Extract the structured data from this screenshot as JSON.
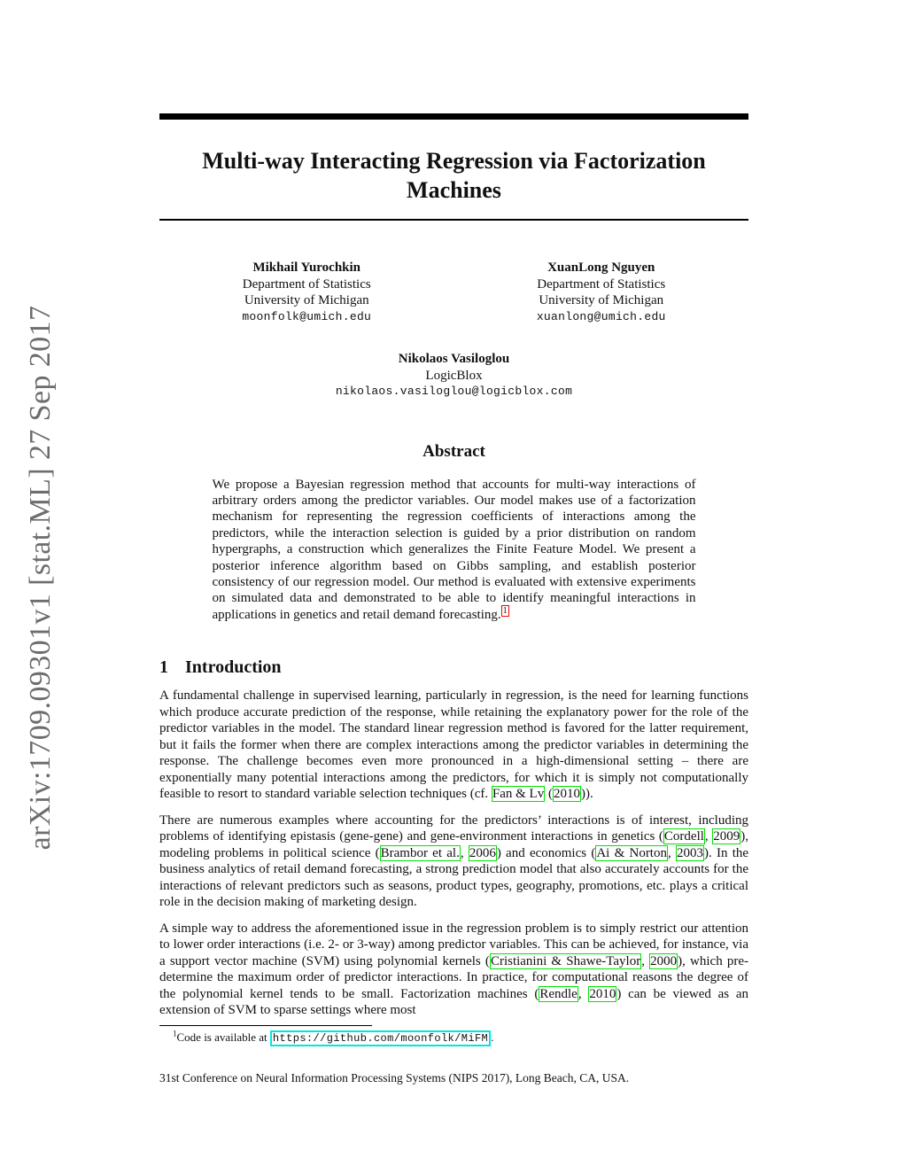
{
  "banner": {
    "text": "arXiv:1709.09301v1  [stat.ML]  27 Sep 2017"
  },
  "title": "Multi-way Interacting Regression via Factorization Machines",
  "authors": [
    {
      "name": "Mikhail Yurochkin",
      "affiliation1": "Department of Statistics",
      "affiliation2": "University of Michigan",
      "email": "moonfolk@umich.edu"
    },
    {
      "name": "XuanLong Nguyen",
      "affiliation1": "Department of Statistics",
      "affiliation2": "University of Michigan",
      "email": "xuanlong@umich.edu"
    },
    {
      "name": "Nikolaos Vasiloglou",
      "affiliation1": "LogicBlox",
      "email": "nikolaos.vasiloglou@logicblox.com"
    }
  ],
  "abstract": {
    "heading": "Abstract",
    "segments": [
      {
        "text": "We propose a Bayesian regression method that accounts for multi-way interactions of arbitrary orders among the predictor variables. Our model makes use of a factorization mechanism for representing the regression coefficients of interactions among the predictors, while the interaction selection is guided by a prior distribution on random hypergraphs, a construction which generalizes the Finite Feature Model. We present a posterior inference algorithm based on Gibbs sampling, and establish posterior consistency of our regression model. Our method is evaluated with extensive experiments on simulated data and demonstrated to be able to identify meaningful interactions in applications in genetics and retail demand forecasting."
      },
      {
        "text": "1",
        "style": "footnote-ref"
      }
    ]
  },
  "introduction": {
    "number": "1",
    "title": "Introduction",
    "paragraphs": [
      {
        "segments": [
          {
            "text": "A fundamental challenge in supervised learning, particularly in regression, is the need for learning functions which produce accurate prediction of the response, while retaining the explanatory power for the role of the predictor variables in the model. The standard linear regression method is favored for the latter requirement, but it fails the former when there are complex interactions among the predictor variables in determining the response. The challenge becomes even more pronounced in a high-dimensional setting – there are exponentially many potential interactions among the predictors, for which it is simply not computationally feasible to resort to standard variable selection techniques (cf. "
          },
          {
            "text": "Fan & Lv",
            "style": "cite"
          },
          {
            "text": " ("
          },
          {
            "text": "2010",
            "style": "cite"
          },
          {
            "text": "))."
          }
        ]
      },
      {
        "segments": [
          {
            "text": "There are numerous examples where accounting for the predictors’ interactions is of interest, including problems of identifying epistasis (gene-gene) and gene-environment interactions in genetics ("
          },
          {
            "text": "Cordell",
            "style": "cite"
          },
          {
            "text": ", "
          },
          {
            "text": "2009",
            "style": "cite"
          },
          {
            "text": "), modeling problems in political science ("
          },
          {
            "text": "Brambor et al.",
            "style": "cite"
          },
          {
            "text": ", "
          },
          {
            "text": "2006",
            "style": "cite"
          },
          {
            "text": ") and economics ("
          },
          {
            "text": "Ai & Norton",
            "style": "cite"
          },
          {
            "text": ", "
          },
          {
            "text": "2003",
            "style": "cite"
          },
          {
            "text": "). In the business analytics of retail demand forecasting, a strong prediction model that also accurately accounts for the interactions of relevant predictors such as seasons, product types, geography, promotions, etc. plays a critical role in the decision making of marketing design."
          }
        ]
      },
      {
        "segments": [
          {
            "text": "A simple way to address the aforementioned issue in the regression problem is to simply restrict our attention to lower order interactions (i.e. 2- or 3-way) among predictor variables. This can be achieved, for instance, via a support vector machine (SVM) using polynomial kernels ("
          },
          {
            "text": "Cristianini & Shawe-Taylor",
            "style": "cite"
          },
          {
            "text": ", "
          },
          {
            "text": "2000",
            "style": "cite"
          },
          {
            "text": "), which pre-determine the maximum order of predictor interactions. In practice, for computational reasons the degree of the polynomial kernel tends to be small. Factorization machines ("
          },
          {
            "text": "Rendle",
            "style": "cite"
          },
          {
            "text": ", "
          },
          {
            "text": "2010",
            "style": "cite"
          },
          {
            "text": ") can be viewed as an extension of SVM to sparse settings where most"
          }
        ]
      }
    ]
  },
  "footnote": {
    "segments": [
      {
        "text": "1",
        "style": "sup"
      },
      {
        "text": "Code is available at "
      },
      {
        "text": "https://github.com/moonfolk/MiFM",
        "style": "url-box"
      },
      {
        "text": "."
      }
    ]
  },
  "footer": "31st Conference on Neural Information Processing Systems (NIPS 2017), Long Beach, CA, USA.",
  "colors": {
    "citation_box": "#00e400",
    "footnote_ref_box": "#ff0000",
    "url_box": "#00e5e5",
    "banner_gray": "#6d6d6d"
  }
}
